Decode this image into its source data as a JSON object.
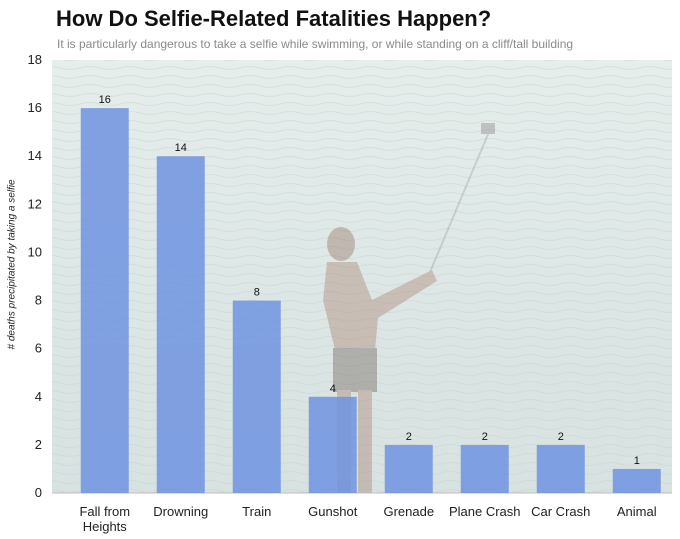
{
  "chart_data": {
    "type": "bar",
    "title": "How Do Selfie-Related Fatalities Happen?",
    "subtitle": "It is particularly dangerous to take a selfie while swimming, or while standing on a cliff/tall building",
    "ylabel": "# deaths precipitated by taking a selfie",
    "xlabel": "",
    "categories": [
      "Fall from\nHeights",
      "Drowning",
      "Train",
      "Gunshot",
      "Grenade",
      "Plane Crash",
      "Car Crash",
      "Animal"
    ],
    "values": [
      16,
      14,
      8,
      4,
      2,
      2,
      2,
      1
    ],
    "ylim": [
      0,
      18
    ],
    "yticks": [
      0,
      2,
      4,
      6,
      8,
      10,
      12,
      14,
      16,
      18
    ],
    "bar_color": "#6f93e0",
    "background_photo": "man taking selfie with selfie-stick in sea water"
  }
}
